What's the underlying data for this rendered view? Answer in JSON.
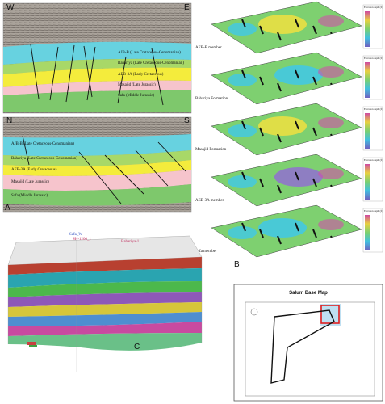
{
  "panel_a": {
    "label": "A",
    "sections": [
      {
        "left": "W",
        "right": "E",
        "layers": [
          "AJB-B (Late Cretaceous-Cenomanian)",
          "Bahariya (Late Cretaceous-Cenomanian)",
          "AEB-3A (Early Cretaceous)",
          "Masajid (Late Jurassic)",
          "Safa (Middle Jurassic)"
        ]
      },
      {
        "left": "N",
        "right": "S",
        "layers": [
          "AJB-B (Late Cretaceous-Cenomanian)",
          "Bahariya (Late Cretaceous-Cenomanian)",
          "AEB-3A (Early Cretaceous)",
          "Masajid (Late Jurassic)",
          "Safa (Middle Jurassic)"
        ]
      }
    ]
  },
  "panel_b": {
    "label": "B",
    "legend_title": "Elevation depth (ft)",
    "surfaces": [
      "AEB-B member",
      "Bahariya Formation",
      "Masajid Formation",
      "AEB-3A member",
      "Safa member"
    ]
  },
  "panel_c": {
    "label": "C",
    "wells": [
      "Safa_W",
      "SH-1200_1",
      "Bahariya-1"
    ]
  },
  "map": {
    "title": "Salum Base Map"
  }
}
